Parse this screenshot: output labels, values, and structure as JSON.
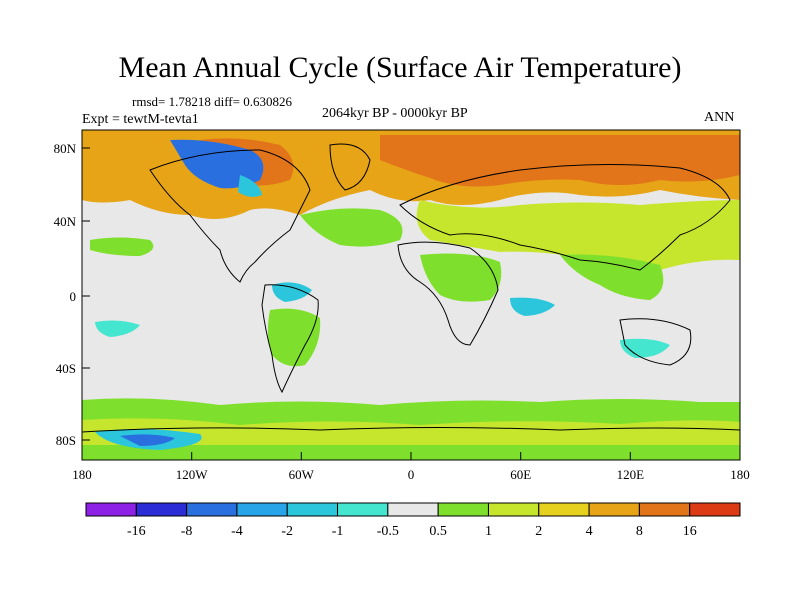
{
  "title": "Mean Annual Cycle (Surface Air Temperature)",
  "stats": "rmsd= 1.78218 diff= 0.630826",
  "experiment": "Expt = tewtM-tevta1",
  "period": "2064kyr BP - 0000kyr BP",
  "season": "ANN",
  "axes": {
    "lon_ticks": [
      "180",
      "120W",
      "60W",
      "0",
      "60E",
      "120E",
      "180"
    ],
    "lat_ticks": [
      "80N",
      "40N",
      "0",
      "40S",
      "80S"
    ]
  },
  "colorbar": {
    "colors": [
      "#8d22e6",
      "#2c2cd6",
      "#2a6fe0",
      "#28a4e8",
      "#2bc6dc",
      "#44e6d0",
      "#e8e8e8",
      "#7ee02c",
      "#c6e62e",
      "#e6d21e",
      "#e6a416",
      "#e2741a",
      "#dc3a14"
    ],
    "labels": [
      "-16",
      "-8",
      "-4",
      "-2",
      "-1",
      "-0.5",
      "0.5",
      "1",
      "2",
      "4",
      "8",
      "16"
    ]
  },
  "legend_colors": {
    "neutral": "#e8e8e8",
    "weak_warm": "#7ee02c",
    "warm": "#c6e62e",
    "warmer": "#e6d21e",
    "hot": "#e6a416",
    "hotter": "#e2741a",
    "weak_cool": "#44e6d0",
    "cool": "#2bc6dc",
    "cold": "#28a4e8",
    "colder": "#2a6fe0"
  }
}
